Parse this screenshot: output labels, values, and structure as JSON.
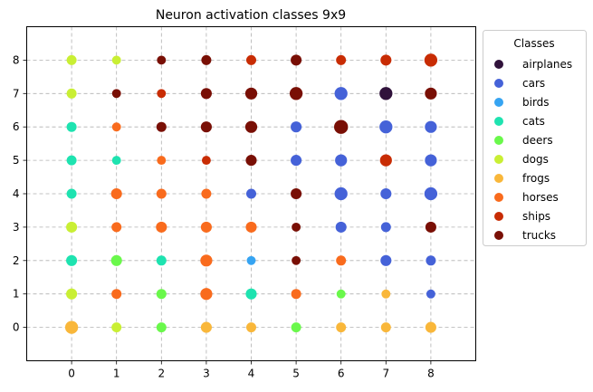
{
  "chart_data": {
    "type": "scatter",
    "title": "Neuron activation classes 9x9",
    "xlabel": "",
    "ylabel": "",
    "xlim": [
      -1,
      9
    ],
    "ylim": [
      -1,
      9
    ],
    "x_ticks": [
      "0",
      "1",
      "2",
      "3",
      "4",
      "5",
      "6",
      "7",
      "8"
    ],
    "y_ticks": [
      "0",
      "1",
      "2",
      "3",
      "4",
      "5",
      "6",
      "7",
      "8"
    ],
    "grid": "dashed",
    "legend": {
      "title": "Classes",
      "placement": "outside-right",
      "entries": [
        {
          "name": "airplanes",
          "color": "#30123b"
        },
        {
          "name": "cars",
          "color": "#4562d8"
        },
        {
          "name": "birds",
          "color": "#36a4f2"
        },
        {
          "name": "cats",
          "color": "#1ee3b0"
        },
        {
          "name": "deers",
          "color": "#6af84b"
        },
        {
          "name": "dogs",
          "color": "#c9ef34"
        },
        {
          "name": "frogs",
          "color": "#f9b73a"
        },
        {
          "name": "horses",
          "color": "#f96b1d"
        },
        {
          "name": "ships",
          "color": "#c82c04"
        },
        {
          "name": "trucks",
          "color": "#790f05"
        }
      ]
    },
    "points": [
      {
        "x": 0,
        "y": 8,
        "class": "dogs",
        "size": 1.0
      },
      {
        "x": 1,
        "y": 8,
        "class": "dogs",
        "size": 0.9
      },
      {
        "x": 2,
        "y": 8,
        "class": "trucks",
        "size": 0.9
      },
      {
        "x": 3,
        "y": 8,
        "class": "trucks",
        "size": 1.0
      },
      {
        "x": 4,
        "y": 8,
        "class": "ships",
        "size": 1.0
      },
      {
        "x": 5,
        "y": 8,
        "class": "trucks",
        "size": 1.1
      },
      {
        "x": 6,
        "y": 8,
        "class": "ships",
        "size": 1.0
      },
      {
        "x": 7,
        "y": 8,
        "class": "ships",
        "size": 1.1
      },
      {
        "x": 8,
        "y": 8,
        "class": "ships",
        "size": 1.3
      },
      {
        "x": 0,
        "y": 7,
        "class": "dogs",
        "size": 1.0
      },
      {
        "x": 1,
        "y": 7,
        "class": "trucks",
        "size": 0.9
      },
      {
        "x": 2,
        "y": 7,
        "class": "ships",
        "size": 0.9
      },
      {
        "x": 3,
        "y": 7,
        "class": "trucks",
        "size": 1.1
      },
      {
        "x": 4,
        "y": 7,
        "class": "trucks",
        "size": 1.2
      },
      {
        "x": 5,
        "y": 7,
        "class": "trucks",
        "size": 1.3
      },
      {
        "x": 6,
        "y": 7,
        "class": "cars",
        "size": 1.3
      },
      {
        "x": 7,
        "y": 7,
        "class": "airplanes",
        "size": 1.3
      },
      {
        "x": 8,
        "y": 7,
        "class": "trucks",
        "size": 1.2
      },
      {
        "x": 0,
        "y": 6,
        "class": "cats",
        "size": 1.0
      },
      {
        "x": 1,
        "y": 6,
        "class": "horses",
        "size": 0.9
      },
      {
        "x": 2,
        "y": 6,
        "class": "trucks",
        "size": 1.0
      },
      {
        "x": 3,
        "y": 6,
        "class": "trucks",
        "size": 1.1
      },
      {
        "x": 4,
        "y": 6,
        "class": "trucks",
        "size": 1.2
      },
      {
        "x": 5,
        "y": 6,
        "class": "cars",
        "size": 1.1
      },
      {
        "x": 6,
        "y": 6,
        "class": "trucks",
        "size": 1.4
      },
      {
        "x": 7,
        "y": 6,
        "class": "cars",
        "size": 1.3
      },
      {
        "x": 8,
        "y": 6,
        "class": "cars",
        "size": 1.2
      },
      {
        "x": 0,
        "y": 5,
        "class": "cats",
        "size": 1.0
      },
      {
        "x": 1,
        "y": 5,
        "class": "cats",
        "size": 0.9
      },
      {
        "x": 2,
        "y": 5,
        "class": "horses",
        "size": 0.9
      },
      {
        "x": 3,
        "y": 5,
        "class": "ships",
        "size": 0.9
      },
      {
        "x": 4,
        "y": 5,
        "class": "trucks",
        "size": 1.1
      },
      {
        "x": 5,
        "y": 5,
        "class": "cars",
        "size": 1.1
      },
      {
        "x": 6,
        "y": 5,
        "class": "cars",
        "size": 1.2
      },
      {
        "x": 7,
        "y": 5,
        "class": "ships",
        "size": 1.2
      },
      {
        "x": 8,
        "y": 5,
        "class": "cars",
        "size": 1.2
      },
      {
        "x": 0,
        "y": 4,
        "class": "cats",
        "size": 1.0
      },
      {
        "x": 1,
        "y": 4,
        "class": "horses",
        "size": 1.1
      },
      {
        "x": 2,
        "y": 4,
        "class": "horses",
        "size": 1.0
      },
      {
        "x": 3,
        "y": 4,
        "class": "horses",
        "size": 1.0
      },
      {
        "x": 4,
        "y": 4,
        "class": "cars",
        "size": 1.0
      },
      {
        "x": 5,
        "y": 4,
        "class": "trucks",
        "size": 1.1
      },
      {
        "x": 6,
        "y": 4,
        "class": "cars",
        "size": 1.3
      },
      {
        "x": 7,
        "y": 4,
        "class": "cars",
        "size": 1.1
      },
      {
        "x": 8,
        "y": 4,
        "class": "cars",
        "size": 1.3
      },
      {
        "x": 0,
        "y": 3,
        "class": "dogs",
        "size": 1.1
      },
      {
        "x": 1,
        "y": 3,
        "class": "horses",
        "size": 1.0
      },
      {
        "x": 2,
        "y": 3,
        "class": "horses",
        "size": 1.1
      },
      {
        "x": 3,
        "y": 3,
        "class": "horses",
        "size": 1.1
      },
      {
        "x": 4,
        "y": 3,
        "class": "horses",
        "size": 1.1
      },
      {
        "x": 5,
        "y": 3,
        "class": "trucks",
        "size": 0.9
      },
      {
        "x": 6,
        "y": 3,
        "class": "cars",
        "size": 1.1
      },
      {
        "x": 7,
        "y": 3,
        "class": "cars",
        "size": 1.0
      },
      {
        "x": 8,
        "y": 3,
        "class": "trucks",
        "size": 1.1
      },
      {
        "x": 0,
        "y": 2,
        "class": "cats",
        "size": 1.1
      },
      {
        "x": 1,
        "y": 2,
        "class": "deers",
        "size": 1.1
      },
      {
        "x": 2,
        "y": 2,
        "class": "cats",
        "size": 1.0
      },
      {
        "x": 3,
        "y": 2,
        "class": "horses",
        "size": 1.2
      },
      {
        "x": 4,
        "y": 2,
        "class": "birds",
        "size": 0.9
      },
      {
        "x": 5,
        "y": 2,
        "class": "trucks",
        "size": 0.9
      },
      {
        "x": 6,
        "y": 2,
        "class": "horses",
        "size": 1.0
      },
      {
        "x": 7,
        "y": 2,
        "class": "cars",
        "size": 1.1
      },
      {
        "x": 8,
        "y": 2,
        "class": "cars",
        "size": 1.0
      },
      {
        "x": 0,
        "y": 1,
        "class": "dogs",
        "size": 1.1
      },
      {
        "x": 1,
        "y": 1,
        "class": "horses",
        "size": 1.0
      },
      {
        "x": 2,
        "y": 1,
        "class": "deers",
        "size": 1.0
      },
      {
        "x": 3,
        "y": 1,
        "class": "horses",
        "size": 1.2
      },
      {
        "x": 4,
        "y": 1,
        "class": "cats",
        "size": 1.1
      },
      {
        "x": 5,
        "y": 1,
        "class": "horses",
        "size": 1.0
      },
      {
        "x": 6,
        "y": 1,
        "class": "deers",
        "size": 0.9
      },
      {
        "x": 7,
        "y": 1,
        "class": "frogs",
        "size": 0.9
      },
      {
        "x": 8,
        "y": 1,
        "class": "cars",
        "size": 0.9
      },
      {
        "x": 0,
        "y": 0,
        "class": "frogs",
        "size": 1.3
      },
      {
        "x": 1,
        "y": 0,
        "class": "dogs",
        "size": 1.0
      },
      {
        "x": 2,
        "y": 0,
        "class": "deers",
        "size": 1.0
      },
      {
        "x": 3,
        "y": 0,
        "class": "frogs",
        "size": 1.1
      },
      {
        "x": 4,
        "y": 0,
        "class": "frogs",
        "size": 1.0
      },
      {
        "x": 5,
        "y": 0,
        "class": "deers",
        "size": 1.0
      },
      {
        "x": 6,
        "y": 0,
        "class": "frogs",
        "size": 1.0
      },
      {
        "x": 7,
        "y": 0,
        "class": "frogs",
        "size": 1.0
      },
      {
        "x": 8,
        "y": 0,
        "class": "frogs",
        "size": 1.1
      }
    ]
  }
}
